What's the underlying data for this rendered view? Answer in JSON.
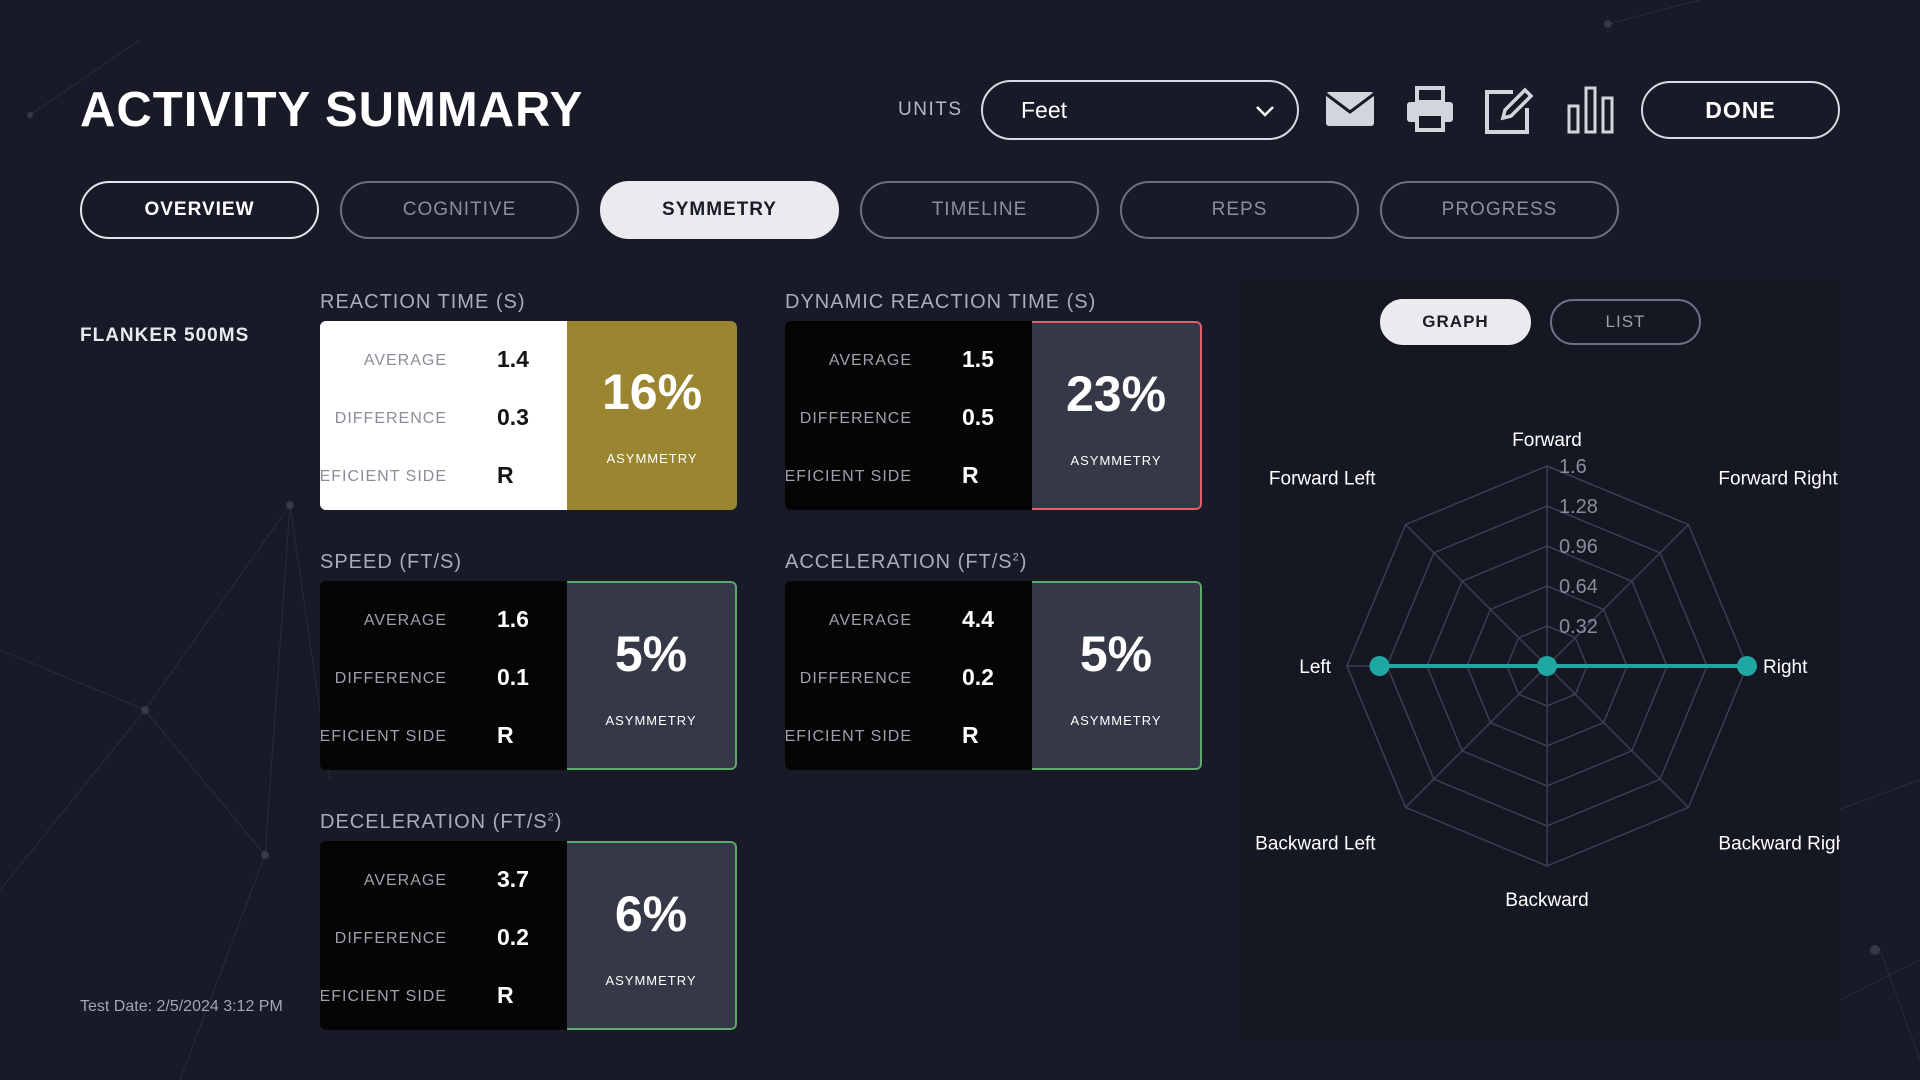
{
  "header": {
    "title": "ACTIVITY SUMMARY",
    "units_label": "UNITS",
    "units_value": "Feet",
    "done_label": "DONE",
    "icons": [
      "mail-icon",
      "print-icon",
      "edit-icon",
      "bar-chart-icon"
    ]
  },
  "tabs": [
    {
      "label": "OVERVIEW"
    },
    {
      "label": "COGNITIVE"
    },
    {
      "label": "SYMMETRY",
      "active": true
    },
    {
      "label": "TIMELINE"
    },
    {
      "label": "REPS"
    },
    {
      "label": "PROGRESS"
    }
  ],
  "test": {
    "name": "FLANKER 500MS",
    "date": "Test Date: 2/5/2024 3:12 PM"
  },
  "labels": {
    "average": "AVERAGE",
    "difference": "DIFFERENCE",
    "deficient_side": "DEFICIENT SIDE",
    "asymmetry": "ASYMMETRY"
  },
  "metrics": {
    "reaction": {
      "title": "REACTION TIME (S)",
      "average": "1.4",
      "difference": "0.3",
      "side": "R",
      "asymmetry": "16%"
    },
    "dynamic": {
      "title": "DYNAMIC REACTION TIME (S)",
      "average": "1.5",
      "difference": "0.5",
      "side": "R",
      "asymmetry": "23%"
    },
    "speed": {
      "title": "SPEED (FT/S)",
      "average": "1.6",
      "difference": "0.1",
      "side": "R",
      "asymmetry": "5%"
    },
    "acceleration": {
      "title": "ACCELERATION (FT/S",
      "title_sup": "2",
      "title_end": ")",
      "average": "4.4",
      "difference": "0.2",
      "side": "R",
      "asymmetry": "5%"
    },
    "deceleration": {
      "title": "DECELERATION (FT/S",
      "title_sup": "2",
      "title_end": ")",
      "average": "3.7",
      "difference": "0.2",
      "side": "R",
      "asymmetry": "6%"
    }
  },
  "chart_toggle": {
    "graph": "GRAPH",
    "list": "LIST",
    "active": "GRAPH"
  },
  "colors": {
    "accent": "#1fa8a3",
    "gold": "#9a8531",
    "red_border": "#e25f6c",
    "green_border": "#5fa86b"
  },
  "chart_data": {
    "type": "radar",
    "axes": [
      "Forward",
      "Forward Right",
      "Right",
      "Backward Right",
      "Backward",
      "Backward Left",
      "Left",
      "Forward Left"
    ],
    "ticks": [
      "0.32",
      "0.64",
      "0.96",
      "1.28",
      "1.6"
    ],
    "rmax": 1.6,
    "series": [
      {
        "values": [
          0,
          0,
          1.6,
          0,
          0,
          0,
          1.34,
          0
        ]
      }
    ]
  }
}
